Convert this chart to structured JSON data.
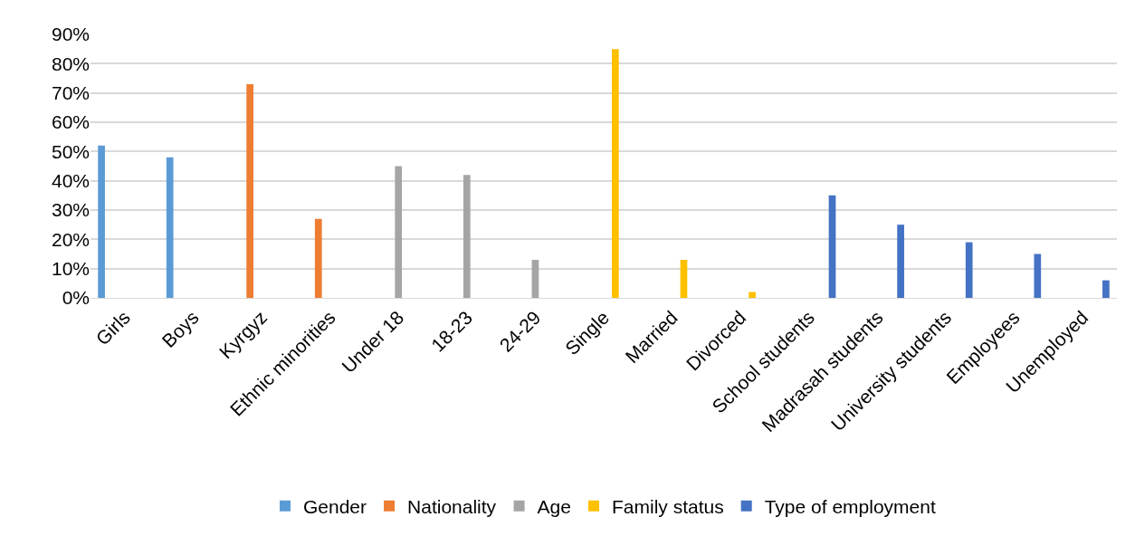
{
  "chart_data": {
    "type": "bar",
    "categories": [
      "Girls",
      "Boys",
      "Kyrgyz",
      "Ethnic minorities",
      "Under 18",
      "18-23",
      "24-29",
      "Single",
      "Married",
      "Divorced",
      "School students",
      "Madrasah students",
      "University students",
      "Employees",
      "Unemployed"
    ],
    "series": [
      {
        "name": "Gender",
        "color": "#5b9bd5",
        "values": [
          52,
          48,
          null,
          null,
          null,
          null,
          null,
          null,
          null,
          null,
          null,
          null,
          null,
          null,
          null
        ]
      },
      {
        "name": "Nationality",
        "color": "#ed7d31",
        "values": [
          null,
          null,
          73,
          27,
          null,
          null,
          null,
          null,
          null,
          null,
          null,
          null,
          null,
          null,
          null
        ]
      },
      {
        "name": "Age",
        "color": "#a5a5a5",
        "values": [
          null,
          null,
          null,
          null,
          45,
          42,
          13,
          null,
          null,
          null,
          null,
          null,
          null,
          null,
          null
        ]
      },
      {
        "name": "Family status",
        "color": "#ffc000",
        "values": [
          null,
          null,
          null,
          null,
          null,
          null,
          null,
          85,
          13,
          2,
          null,
          null,
          null,
          null,
          null
        ]
      },
      {
        "name": "Type of employment",
        "color": "#4472c4",
        "values": [
          null,
          null,
          null,
          null,
          null,
          null,
          null,
          null,
          null,
          null,
          35,
          25,
          19,
          15,
          6
        ]
      }
    ],
    "ylim": [
      0,
      90
    ],
    "yticks": [
      {
        "value": 0,
        "label": "0%"
      },
      {
        "value": 10,
        "label": "10%"
      },
      {
        "value": 20,
        "label": "20%"
      },
      {
        "value": 30,
        "label": "30%"
      },
      {
        "value": 40,
        "label": "40%"
      },
      {
        "value": 50,
        "label": "50%"
      },
      {
        "value": 60,
        "label": "60%"
      },
      {
        "value": 70,
        "label": "70%"
      },
      {
        "value": 80,
        "label": "80%"
      },
      {
        "value": 90,
        "label": "90%"
      }
    ],
    "grid": "y",
    "legend": "bottom"
  }
}
